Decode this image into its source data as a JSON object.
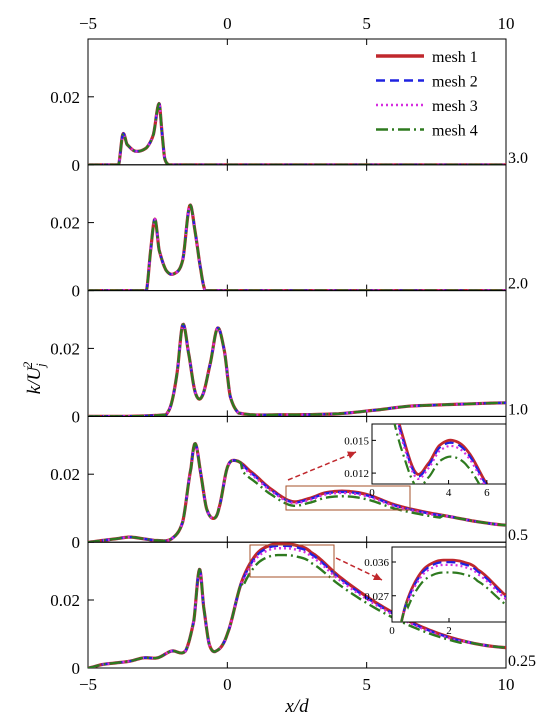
{
  "chart_data": {
    "type": "line",
    "xlabel": "x/d",
    "ylabel": "k/U_j^2",
    "xlim": [
      -5,
      10
    ],
    "x_ticks": [
      "-5",
      "0",
      "5",
      "10"
    ],
    "legend": {
      "placement": "top-right",
      "entries": [
        "mesh 1",
        "mesh 2",
        "mesh 3",
        "mesh 4"
      ]
    },
    "series_styles": [
      {
        "name": "mesh 1",
        "color": "#c0282d",
        "dash": "solid"
      },
      {
        "name": "mesh 2",
        "color": "#1f22e0",
        "dash": "dash"
      },
      {
        "name": "mesh 3",
        "color": "#d62ee0",
        "dash": "dot"
      },
      {
        "name": "mesh 4",
        "color": "#2e7a1f",
        "dash": "dashdot"
      }
    ],
    "panels": [
      {
        "side_label": "3.0",
        "ylim": [
          0,
          0.037
        ],
        "y_ticks": [
          "0",
          "0.02"
        ],
        "x": [
          -5,
          -3.9,
          -3.75,
          -3.6,
          -3.3,
          -2.9,
          -2.65,
          -2.45,
          -2.35,
          -2.25,
          -2.1,
          -1.9,
          0,
          5,
          10
        ],
        "values": [
          0,
          0,
          0.009,
          0.006,
          0.004,
          0.005,
          0.009,
          0.018,
          0.01,
          0.002,
          0,
          0,
          0,
          0,
          0
        ]
      },
      {
        "side_label": "2.0",
        "ylim": [
          0,
          0.037
        ],
        "y_ticks": [
          "0",
          "0.02"
        ],
        "x": [
          -5,
          -2.9,
          -2.75,
          -2.6,
          -2.45,
          -2.2,
          -1.9,
          -1.6,
          -1.35,
          -1.15,
          -0.95,
          -0.8,
          0,
          5,
          10
        ],
        "values": [
          0,
          0,
          0.012,
          0.021,
          0.012,
          0.006,
          0.005,
          0.009,
          0.025,
          0.017,
          0.006,
          0,
          0,
          0,
          0
        ]
      },
      {
        "side_label": "1.0",
        "ylim": [
          0,
          0.037
        ],
        "y_ticks": [
          "0",
          "0.02"
        ],
        "x": [
          -5,
          -2.2,
          -2.0,
          -1.8,
          -1.6,
          -1.4,
          -1.15,
          -0.9,
          -0.6,
          -0.35,
          -0.1,
          0.1,
          0.4,
          2,
          4,
          5.5,
          6.5,
          8,
          10
        ],
        "values": [
          0,
          0.0005,
          0.004,
          0.013,
          0.027,
          0.019,
          0.007,
          0.006,
          0.016,
          0.026,
          0.019,
          0.006,
          0.001,
          0.0005,
          0.0008,
          0.002,
          0.003,
          0.0035,
          0.004
        ]
      },
      {
        "side_label": "0.5",
        "ylim": [
          0,
          0.037
        ],
        "y_ticks": [
          "0",
          "0.02"
        ],
        "x": [
          -5,
          -4.5,
          -4,
          -3.5,
          -3,
          -2.5,
          -2,
          -1.6,
          -1.3,
          -1.15,
          -0.95,
          -0.75,
          -0.5,
          -0.3,
          0,
          0.3,
          0.8,
          1.5,
          2.3,
          3,
          3.5,
          4.2,
          5,
          6,
          7,
          8,
          9,
          10
        ],
        "values": [
          0,
          0.0005,
          0.001,
          0.0015,
          0.001,
          0.0005,
          0.001,
          0.006,
          0.022,
          0.029,
          0.02,
          0.01,
          0.007,
          0.01,
          0.022,
          0.024,
          0.021,
          0.016,
          0.012,
          0.013,
          0.0145,
          0.015,
          0.014,
          0.011,
          0.009,
          0.0075,
          0.006,
          0.005
        ]
      },
      {
        "side_label": "0.25",
        "ylim": [
          0,
          0.037
        ],
        "y_ticks": [
          "0",
          "0.02"
        ],
        "x": [
          -5,
          -4.5,
          -4,
          -3.5,
          -3,
          -2.5,
          -2,
          -1.5,
          -1.2,
          -1.0,
          -0.85,
          -0.65,
          -0.4,
          0,
          0.5,
          1,
          1.5,
          2,
          2.5,
          3,
          4,
          5,
          6,
          7,
          8,
          9,
          10
        ],
        "values": [
          0,
          0.001,
          0.0015,
          0.002,
          0.003,
          0.003,
          0.005,
          0.005,
          0.014,
          0.029,
          0.018,
          0.007,
          0.005,
          0.01,
          0.025,
          0.033,
          0.036,
          0.0365,
          0.036,
          0.034,
          0.027,
          0.021,
          0.016,
          0.012,
          0.009,
          0.007,
          0.006
        ]
      }
    ],
    "mesh_scale": {
      "mesh 1": [
        1,
        1,
        1,
        1,
        1
      ],
      "mesh 2": [
        1,
        1,
        1,
        0.985,
        0.985
      ],
      "mesh 3": [
        1,
        1,
        1,
        0.965,
        0.965
      ],
      "mesh 4": [
        1,
        1,
        1,
        0.9,
        0.91
      ]
    },
    "insets": [
      {
        "panel": 3,
        "xlim": [
          0,
          7
        ],
        "ylim": [
          0.011,
          0.0165
        ],
        "x_ticks": [
          "0",
          "4",
          "6"
        ],
        "y_ticks": [
          "0.012",
          "0.015"
        ]
      },
      {
        "panel": 4,
        "xlim": [
          0,
          4
        ],
        "ylim": [
          0.02,
          0.04
        ],
        "x_ticks": [
          "0",
          "2"
        ],
        "y_ticks": [
          "0.027",
          "0.036"
        ]
      }
    ]
  }
}
